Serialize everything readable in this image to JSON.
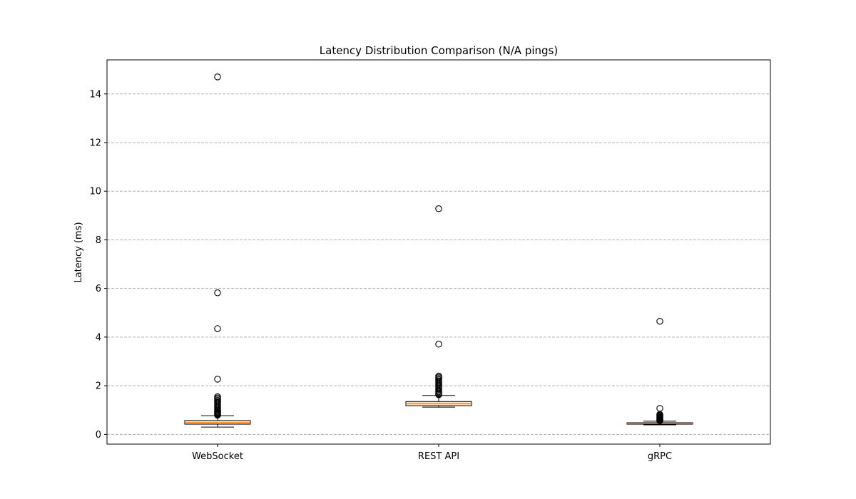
{
  "chart_data": {
    "type": "box",
    "title": "Latency Distribution Comparison (N/A pings)",
    "xlabel": "",
    "ylabel": "Latency (ms)",
    "ylim": [
      -0.4,
      15.4
    ],
    "yticks": [
      0,
      2,
      4,
      6,
      8,
      10,
      12,
      14
    ],
    "grid": "y-dashed",
    "categories": [
      "WebSocket",
      "REST API",
      "gRPC"
    ],
    "boxes": [
      {
        "name": "WebSocket",
        "whisker_low": 0.3,
        "q1": 0.42,
        "median": 0.48,
        "q3": 0.57,
        "whisker_high": 0.77,
        "outliers": [
          14.7,
          5.82,
          4.35,
          2.27,
          1.55,
          1.5,
          1.45,
          1.4,
          1.35,
          1.3,
          1.25,
          1.2,
          1.15,
          1.1,
          1.05,
          1.0,
          0.97,
          0.93,
          0.9,
          0.87,
          0.84,
          0.81,
          0.79
        ]
      },
      {
        "name": "REST API",
        "whisker_low": 1.12,
        "q1": 1.18,
        "median": 1.26,
        "q3": 1.35,
        "whisker_high": 1.6,
        "outliers": [
          9.28,
          3.71,
          2.4,
          2.35,
          2.3,
          2.25,
          2.2,
          2.15,
          2.1,
          2.05,
          2.0,
          1.95,
          1.9,
          1.85,
          1.8,
          1.75,
          1.7,
          1.66,
          1.63
        ]
      },
      {
        "name": "gRPC",
        "whisker_low": 0.39,
        "q1": 0.42,
        "median": 0.45,
        "q3": 0.48,
        "whisker_high": 0.54,
        "outliers": [
          4.65,
          1.07,
          0.82,
          0.79,
          0.76,
          0.73,
          0.7,
          0.67,
          0.64,
          0.61,
          0.58,
          0.56
        ]
      }
    ],
    "colors": {
      "box_fill": "#ffe7cc",
      "box_edge": "#000000",
      "median": "#ff7f0e",
      "grid": "#b0b0b0",
      "outlier_edge": "#000000"
    }
  }
}
